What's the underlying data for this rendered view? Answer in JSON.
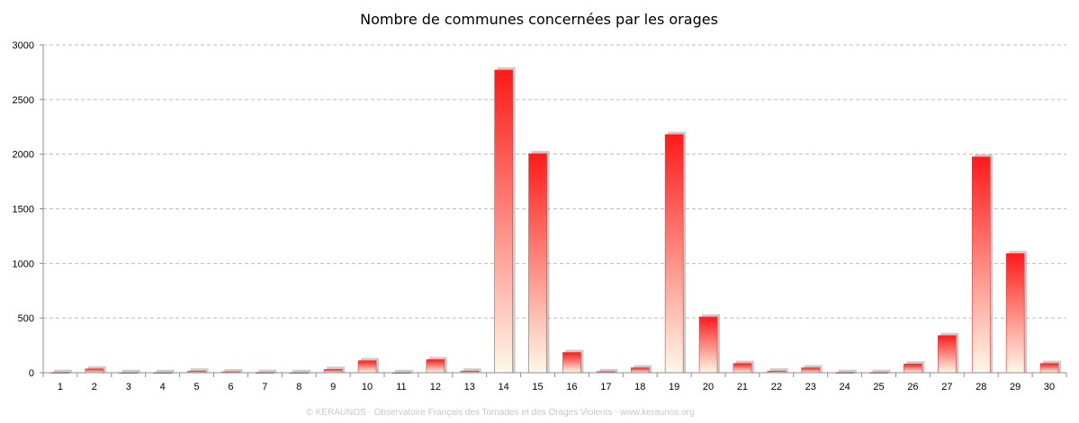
{
  "chart_data": {
    "type": "bar",
    "title": "Nombre de communes concernées par les orages",
    "xlabel": "",
    "ylabel": "",
    "categories": [
      "1",
      "2",
      "3",
      "4",
      "5",
      "6",
      "7",
      "8",
      "9",
      "10",
      "11",
      "12",
      "13",
      "14",
      "15",
      "16",
      "17",
      "18",
      "19",
      "20",
      "21",
      "22",
      "23",
      "24",
      "25",
      "26",
      "27",
      "28",
      "29",
      "30"
    ],
    "values": [
      3,
      35,
      2,
      2,
      15,
      8,
      3,
      2,
      30,
      110,
      2,
      120,
      15,
      2770,
      2005,
      185,
      10,
      45,
      2180,
      510,
      85,
      15,
      45,
      3,
      3,
      80,
      340,
      1975,
      1090,
      85
    ],
    "ylim": [
      0,
      3000
    ],
    "yticks": [
      0,
      500,
      1000,
      1500,
      2000,
      2500,
      3000
    ],
    "grid": true,
    "legend": "none",
    "colors": {
      "bar_top": "#ff1a1a",
      "bar_bottom": "#fff8e8",
      "grid": "#bdbdbd",
      "axis": "#8c8c8c",
      "shadow": "#a0a0a0"
    }
  },
  "footer": "© KERAUNOS - Observatoire Français des Tornades et des Orages Violents - www.keraunos.org"
}
